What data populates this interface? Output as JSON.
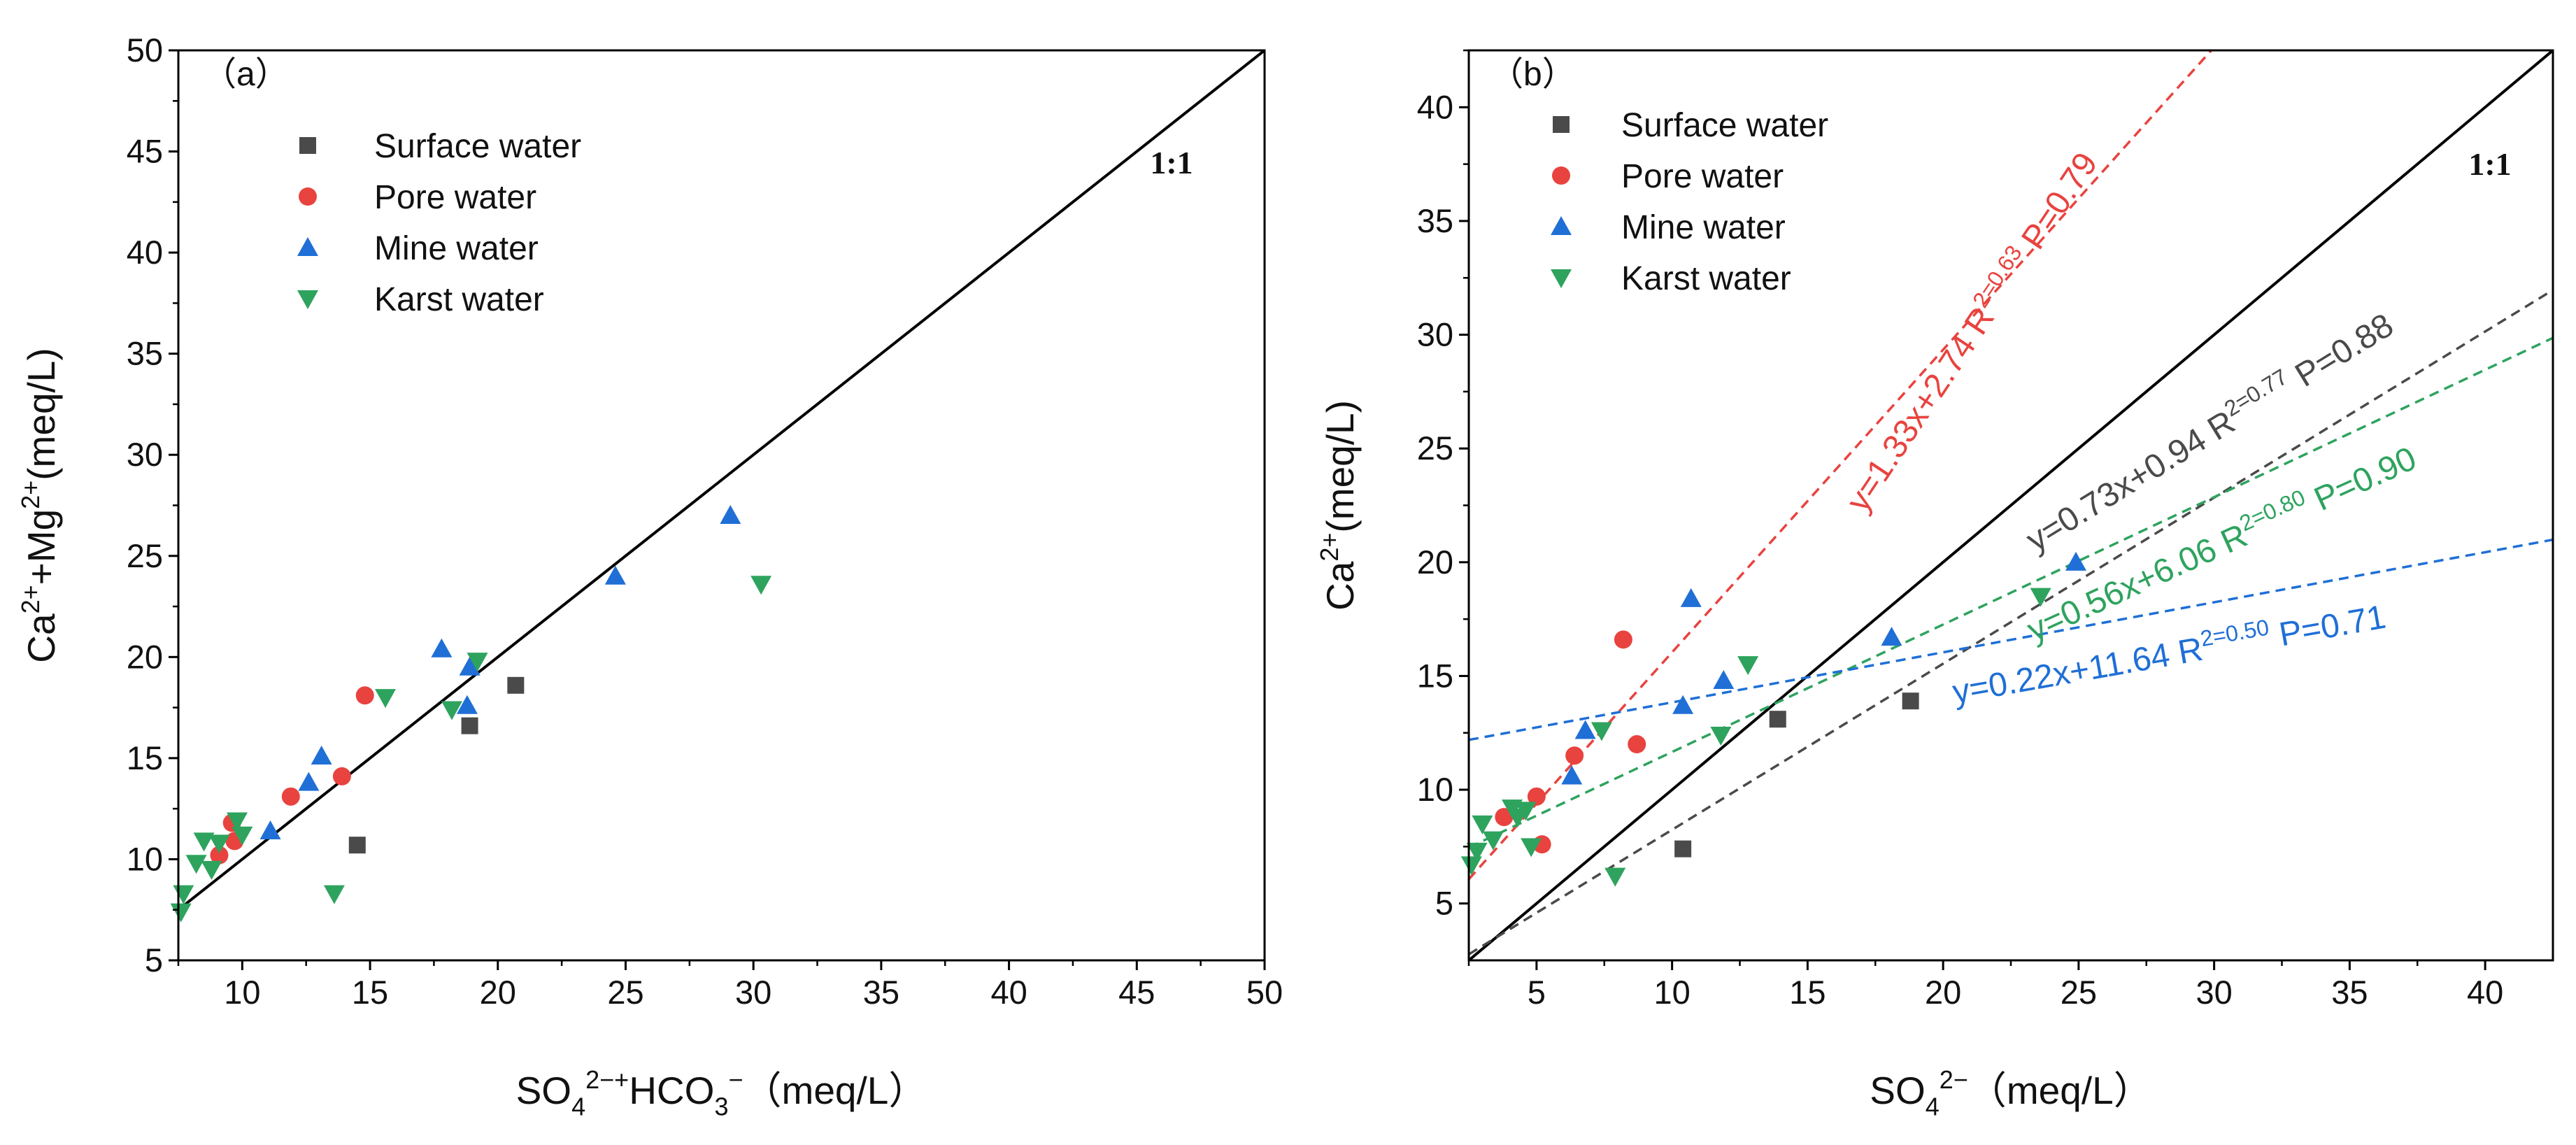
{
  "chart_data": [
    {
      "type": "scatter",
      "panel_label": "（a）",
      "xlabel": "SO<sub>4</sub>^2−+HCO<sub>3</sub>^−（meq/L）",
      "ylabel": "Ca^2++Mg^2+(meq/L)",
      "xlim": [
        7.5,
        50
      ],
      "ylim": [
        5,
        50
      ],
      "xticks": [
        "10",
        "15",
        "20",
        "25",
        "30",
        "35",
        "40",
        "45",
        "50"
      ],
      "yticks": [
        "5",
        "10",
        "15",
        "20",
        "25",
        "30",
        "35",
        "40",
        "45",
        "50"
      ],
      "reference_line_label": "1:1",
      "legend": [
        "Surface water",
        "Pore water",
        "Mine water",
        "Karst water"
      ],
      "series": [
        {
          "name": "Surface water",
          "marker": "square",
          "color": "#4a4a4a",
          "points": [
            [
              14.5,
              10.7
            ],
            [
              18.9,
              16.6
            ],
            [
              20.7,
              18.6
            ]
          ]
        },
        {
          "name": "Pore water",
          "marker": "circle",
          "color": "#e8433f",
          "points": [
            [
              11.9,
              13.1
            ],
            [
              13.9,
              14.1
            ],
            [
              14.8,
              18.1
            ],
            [
              9.6,
              11.8
            ],
            [
              9.1,
              10.2
            ],
            [
              9.7,
              10.9
            ]
          ]
        },
        {
          "name": "Mine water",
          "marker": "triangle-up",
          "color": "#1f6fd6",
          "points": [
            [
              11.1,
              11.4
            ],
            [
              12.6,
              13.8
            ],
            [
              13.1,
              15.1
            ],
            [
              17.8,
              20.4
            ],
            [
              18.8,
              17.6
            ],
            [
              18.9,
              19.5
            ],
            [
              24.6,
              24.0
            ],
            [
              29.1,
              27.0
            ]
          ]
        },
        {
          "name": "Karst water",
          "marker": "triangle-down",
          "color": "#2ea35e",
          "points": [
            [
              7.6,
              7.4
            ],
            [
              7.7,
              8.3
            ],
            [
              8.2,
              9.8
            ],
            [
              8.5,
              10.9
            ],
            [
              8.8,
              9.5
            ],
            [
              9.1,
              10.8
            ],
            [
              9.8,
              11.9
            ],
            [
              10.0,
              11.2
            ],
            [
              13.6,
              8.3
            ],
            [
              15.6,
              18.0
            ],
            [
              18.2,
              17.4
            ],
            [
              19.2,
              19.8
            ],
            [
              30.3,
              23.6
            ]
          ]
        }
      ]
    },
    {
      "type": "scatter",
      "panel_label": "（b）",
      "xlabel": "SO<sub>4</sub>^2−（meq/L）",
      "ylabel": "Ca^2+(meq/L)",
      "xlim": [
        2.5,
        42.5
      ],
      "ylim": [
        2.5,
        42.5
      ],
      "xticks": [
        "5",
        "10",
        "15",
        "20",
        "25",
        "30",
        "35",
        "40"
      ],
      "yticks": [
        "5",
        "10",
        "15",
        "20",
        "25",
        "30",
        "35",
        "40"
      ],
      "reference_line_label": "1:1",
      "legend": [
        "Surface water",
        "Pore water",
        "Mine water",
        "Karst water"
      ],
      "series": [
        {
          "name": "Surface water",
          "marker": "square",
          "color": "#4a4a4a",
          "points": [
            [
              10.4,
              7.4
            ],
            [
              13.9,
              13.1
            ],
            [
              18.8,
              13.9
            ]
          ]
        },
        {
          "name": "Pore water",
          "marker": "circle",
          "color": "#e8433f",
          "points": [
            [
              3.8,
              8.8
            ],
            [
              5.0,
              9.7
            ],
            [
              5.2,
              7.6
            ],
            [
              6.4,
              11.5
            ],
            [
              8.2,
              16.6
            ],
            [
              8.7,
              12.0
            ]
          ]
        },
        {
          "name": "Mine water",
          "marker": "triangle-up",
          "color": "#1f6fd6",
          "points": [
            [
              6.3,
              10.6
            ],
            [
              6.8,
              12.6
            ],
            [
              10.4,
              13.7
            ],
            [
              10.7,
              18.4
            ],
            [
              11.9,
              14.8
            ],
            [
              18.1,
              16.7
            ],
            [
              24.9,
              20.0
            ]
          ]
        },
        {
          "name": "Karst water",
          "marker": "triangle-down",
          "color": "#2ea35e",
          "points": [
            [
              2.6,
              6.7
            ],
            [
              2.8,
              7.3
            ],
            [
              3.0,
              8.5
            ],
            [
              3.4,
              7.8
            ],
            [
              4.1,
              9.2
            ],
            [
              4.3,
              8.8
            ],
            [
              4.6,
              9.1
            ],
            [
              4.8,
              7.5
            ],
            [
              7.4,
              12.6
            ],
            [
              7.9,
              6.2
            ],
            [
              11.8,
              12.4
            ],
            [
              12.8,
              15.5
            ],
            [
              23.6,
              18.5
            ]
          ]
        }
      ],
      "fits": [
        {
          "name": "Pore water",
          "color": "#e8433f",
          "slope": 1.33,
          "intercept": 2.74,
          "x_range": [
            2.5,
            30
          ],
          "equation": "y=1.33x+2.74",
          "r2": "R^2=0.63",
          "p": "P=0.79"
        },
        {
          "name": "Surface water",
          "color": "#4a4a4a",
          "slope": 0.73,
          "intercept": 0.94,
          "x_range": [
            2.5,
            42.5
          ],
          "equation": "y=0.73x+0.94",
          "r2": "R^2=0.77",
          "p": "P=0.88"
        },
        {
          "name": "Karst water",
          "color": "#2ea35e",
          "slope": 0.56,
          "intercept": 6.06,
          "x_range": [
            2.5,
            42.5
          ],
          "equation": "y=0.56x+6.06",
          "r2": "R^2=0.80",
          "p": "P=0.90"
        },
        {
          "name": "Mine water",
          "color": "#1f6fd6",
          "slope": 0.22,
          "intercept": 11.64,
          "x_range": [
            2.5,
            42.5
          ],
          "equation": "y=0.22x+11.64",
          "r2": "R^2=0.50",
          "p": "P=0.71"
        }
      ]
    }
  ]
}
